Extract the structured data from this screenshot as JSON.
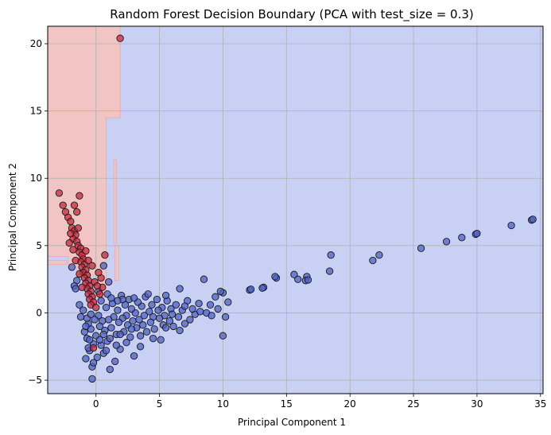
{
  "chart_data": {
    "type": "scatter",
    "title": "Random Forest Decision Boundary (PCA with test_size = 0.3)",
    "xlabel": "Principal Component 1",
    "ylabel": "Principal Component 2",
    "xlim": [
      -3.8,
      35.2
    ],
    "ylim": [
      -6.0,
      21.3
    ],
    "xticks": [
      0,
      5,
      10,
      15,
      20,
      25,
      30,
      35
    ],
    "yticks": [
      -5,
      0,
      5,
      10,
      15,
      20
    ],
    "grid": true,
    "colors": {
      "class_a_region": "#c8d1f4",
      "class_b_region": "#f1c5c3",
      "class_a_point": "#4e62c8",
      "class_b_point": "#c8283c",
      "grid": "#b0b0b0"
    },
    "regions": {
      "class_b": [
        [
          [
            -3.8,
            4.2
          ],
          [
            -3.8,
            21.3
          ],
          [
            1.9,
            21.3
          ],
          [
            1.9,
            14.5
          ],
          [
            0.8,
            14.5
          ],
          [
            0.8,
            1.2
          ],
          [
            -0.2,
            1.2
          ],
          [
            -0.2,
            2.8
          ],
          [
            -1.5,
            2.8
          ],
          [
            -1.5,
            3.6
          ],
          [
            -2.2,
            3.6
          ],
          [
            -2.2,
            4.2
          ]
        ],
        [
          [
            -3.8,
            3.6
          ],
          [
            -3.8,
            3.9
          ],
          [
            -2.3,
            3.9
          ],
          [
            -2.3,
            3.6
          ]
        ],
        [
          [
            1.4,
            5.2
          ],
          [
            1.4,
            11.4
          ],
          [
            1.6,
            11.4
          ],
          [
            1.6,
            5.2
          ]
        ],
        [
          [
            1.5,
            2.4
          ],
          [
            1.5,
            5.0
          ],
          [
            1.8,
            5.0
          ],
          [
            1.8,
            2.4
          ]
        ]
      ]
    },
    "series": [
      {
        "points": [
          [
            34.3,
            6.9
          ],
          [
            34.4,
            6.95
          ],
          [
            32.7,
            6.5
          ],
          [
            29.9,
            5.85
          ],
          [
            30.0,
            5.9
          ],
          [
            28.8,
            5.6
          ],
          [
            27.6,
            5.3
          ],
          [
            25.6,
            4.8
          ],
          [
            22.3,
            4.3
          ],
          [
            21.8,
            3.9
          ],
          [
            18.5,
            4.3
          ],
          [
            18.4,
            3.1
          ],
          [
            16.6,
            2.7
          ],
          [
            16.5,
            2.4
          ],
          [
            16.7,
            2.45
          ],
          [
            15.9,
            2.5
          ],
          [
            15.6,
            2.85
          ],
          [
            14.2,
            2.6
          ],
          [
            14.1,
            2.7
          ],
          [
            13.2,
            1.9
          ],
          [
            13.1,
            1.85
          ],
          [
            12.1,
            1.7
          ],
          [
            12.2,
            1.75
          ],
          [
            10.4,
            0.8
          ],
          [
            10.2,
            -0.3
          ],
          [
            10.0,
            -1.7
          ],
          [
            10.0,
            1.5
          ],
          [
            9.8,
            1.6
          ],
          [
            9.4,
            1.2
          ],
          [
            9.0,
            0.6
          ],
          [
            8.7,
            0.0
          ],
          [
            8.5,
            2.5
          ],
          [
            8.1,
            0.7
          ],
          [
            7.8,
            -0.1
          ],
          [
            7.6,
            0.3
          ],
          [
            7.4,
            -0.5
          ],
          [
            7.2,
            0.9
          ],
          [
            7.0,
            -0.8
          ],
          [
            6.8,
            0.2
          ],
          [
            6.6,
            1.8
          ],
          [
            6.5,
            -0.3
          ],
          [
            6.3,
            0.6
          ],
          [
            6.1,
            -1.0
          ],
          [
            5.9,
            0.3
          ],
          [
            5.8,
            -0.6
          ],
          [
            5.6,
            0.9
          ],
          [
            5.5,
            1.3
          ],
          [
            5.4,
            -0.2
          ],
          [
            5.3,
            -0.9
          ],
          [
            5.2,
            0.4
          ],
          [
            5.1,
            -2.0
          ],
          [
            5.0,
            -0.4
          ],
          [
            4.9,
            0.2
          ],
          [
            4.8,
            1.0
          ],
          [
            4.6,
            -1.2
          ],
          [
            4.5,
            -0.3
          ],
          [
            4.4,
            0.6
          ],
          [
            4.3,
            -0.7
          ],
          [
            4.2,
            0.1
          ],
          [
            4.0,
            -1.4
          ],
          [
            3.9,
            1.2
          ],
          [
            3.8,
            -0.2
          ],
          [
            3.7,
            -0.9
          ],
          [
            3.6,
            0.5
          ],
          [
            3.5,
            -2.5
          ],
          [
            3.4,
            -0.5
          ],
          [
            3.3,
            0.8
          ],
          [
            3.2,
            -1.1
          ],
          [
            3.1,
            0.0
          ],
          [
            3.0,
            -3.2
          ],
          [
            2.9,
            -0.6
          ],
          [
            2.8,
            0.3
          ],
          [
            2.7,
            -1.8
          ],
          [
            2.6,
            1.0
          ],
          [
            2.5,
            -0.9
          ],
          [
            2.4,
            -0.2
          ],
          [
            2.3,
            0.6
          ],
          [
            2.2,
            -1.4
          ],
          [
            2.1,
            -0.4
          ],
          [
            2.0,
            1.3
          ],
          [
            1.9,
            -2.7
          ],
          [
            1.8,
            -0.7
          ],
          [
            1.7,
            0.2
          ],
          [
            1.6,
            -1.6
          ],
          [
            1.5,
            -3.6
          ],
          [
            1.4,
            -0.3
          ],
          [
            1.3,
            0.7
          ],
          [
            1.2,
            -1.1
          ],
          [
            1.1,
            -4.2
          ],
          [
            1.0,
            -0.5
          ],
          [
            0.9,
            -2.1
          ],
          [
            0.8,
            0.4
          ],
          [
            0.7,
            -1.3
          ],
          [
            0.6,
            -3.0
          ],
          [
            0.5,
            -0.6
          ],
          [
            0.4,
            -2.4
          ],
          [
            0.3,
            -1.0
          ],
          [
            0.2,
            -0.2
          ],
          [
            0.1,
            -3.3
          ],
          [
            0.0,
            -1.7
          ],
          [
            -0.1,
            -0.5
          ],
          [
            -0.2,
            -2.3
          ],
          [
            -0.3,
            -4.0
          ],
          [
            -0.4,
            -1.2
          ],
          [
            -0.5,
            -2.8
          ],
          [
            -0.6,
            -0.8
          ],
          [
            -0.7,
            -1.9
          ],
          [
            -0.8,
            -3.4
          ],
          [
            -0.9,
            -1.4
          ],
          [
            -0.3,
            -4.9
          ],
          [
            -0.2,
            -3.7
          ],
          [
            -0.5,
            -2.0
          ],
          [
            -0.6,
            -2.6
          ],
          [
            -0.7,
            -0.4
          ],
          [
            -0.8,
            -1.0
          ],
          [
            -0.4,
            -0.1
          ],
          [
            -1.2,
            -0.3
          ],
          [
            -1.0,
            0.2
          ],
          [
            -1.3,
            0.6
          ],
          [
            0.4,
            0.9
          ],
          [
            0.9,
            1.4
          ],
          [
            1.2,
            1.1
          ],
          [
            2.1,
            1.0
          ],
          [
            3.0,
            1.1
          ],
          [
            4.1,
            1.4
          ],
          [
            1.7,
            0.9
          ],
          [
            6.0,
            -0.1
          ],
          [
            7.0,
            0.5
          ],
          [
            8.2,
            0.1
          ],
          [
            9.1,
            -0.2
          ],
          [
            9.6,
            0.3
          ],
          [
            3.5,
            -1.7
          ],
          [
            4.5,
            -1.9
          ],
          [
            2.4,
            -2.2
          ],
          [
            1.6,
            -2.4
          ],
          [
            0.8,
            -2.8
          ],
          [
            0.3,
            -2.0
          ],
          [
            0.6,
            -1.6
          ],
          [
            1.1,
            -1.9
          ],
          [
            1.9,
            -1.6
          ],
          [
            2.8,
            -1.2
          ],
          [
            5.5,
            -1.1
          ],
          [
            6.6,
            -1.3
          ],
          [
            -1.5,
            2.4
          ],
          [
            -1.7,
            2.0
          ],
          [
            -1.6,
            1.8
          ],
          [
            -1.9,
            3.4
          ],
          [
            0.6,
            3.5
          ],
          [
            1.0,
            2.3
          ],
          [
            0.2,
            1.6
          ]
        ]
      },
      {
        "points": [
          [
            1.9,
            20.4
          ],
          [
            -2.9,
            8.9
          ],
          [
            -2.6,
            8.0
          ],
          [
            -1.7,
            8.0
          ],
          [
            -1.3,
            8.7
          ],
          [
            -1.5,
            7.5
          ],
          [
            -2.4,
            7.5
          ],
          [
            -2.2,
            7.1
          ],
          [
            -2.0,
            6.8
          ],
          [
            -1.9,
            6.3
          ],
          [
            -1.7,
            6.1
          ],
          [
            -1.6,
            5.8
          ],
          [
            -1.8,
            5.5
          ],
          [
            -1.5,
            5.3
          ],
          [
            -1.4,
            5.0
          ],
          [
            -1.2,
            4.8
          ],
          [
            -1.3,
            4.5
          ],
          [
            -1.1,
            4.3
          ],
          [
            -1.0,
            4.0
          ],
          [
            -1.2,
            3.8
          ],
          [
            -0.9,
            3.6
          ],
          [
            -1.1,
            3.4
          ],
          [
            -0.8,
            3.2
          ],
          [
            -1.0,
            3.0
          ],
          [
            -0.7,
            2.8
          ],
          [
            -0.9,
            2.6
          ],
          [
            -0.6,
            2.4
          ],
          [
            -0.8,
            2.2
          ],
          [
            -0.5,
            2.0
          ],
          [
            -0.7,
            1.8
          ],
          [
            -0.4,
            1.6
          ],
          [
            -0.6,
            1.4
          ],
          [
            -0.3,
            1.2
          ],
          [
            -0.5,
            1.0
          ],
          [
            -0.2,
            0.8
          ],
          [
            -0.4,
            0.6
          ],
          [
            0.0,
            0.4
          ],
          [
            0.5,
            1.9
          ],
          [
            0.4,
            2.6
          ],
          [
            0.7,
            4.3
          ],
          [
            0.2,
            3.0
          ],
          [
            -0.1,
            2.3
          ],
          [
            -1.4,
            6.3
          ],
          [
            -1.8,
            4.7
          ],
          [
            -2.0,
            5.9
          ],
          [
            -1.6,
            3.9
          ],
          [
            -2.1,
            5.2
          ],
          [
            -1.3,
            2.9
          ],
          [
            -0.2,
            -2.6
          ],
          [
            0.3,
            1.4
          ],
          [
            -0.6,
            3.9
          ],
          [
            0.1,
            2.0
          ],
          [
            -1.1,
            1.9
          ],
          [
            -0.3,
            3.5
          ],
          [
            -0.8,
            4.6
          ]
        ]
      }
    ]
  }
}
